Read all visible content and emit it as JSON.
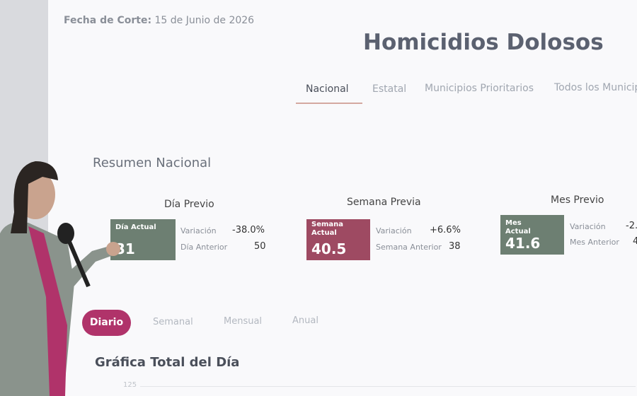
{
  "header": {
    "label": "Fecha de Corte:",
    "date": "15 de Junio de 2026",
    "title": "Homicidios Dolosos"
  },
  "tabs": [
    "Nacional",
    "Estatal",
    "Municipios Prioritarios",
    "Todos los Municipios"
  ],
  "summary": {
    "title": "Resumen Nacional",
    "cards": [
      {
        "heading": "Día Previo",
        "current_label": "Día Actual",
        "current": 31,
        "variation_label": "Variación",
        "variation": "-38.0%",
        "previous_label": "Día Anterior",
        "previous": 50
      },
      {
        "heading": "Semana Previa",
        "current_label": "Semana Actual",
        "current": 40.5,
        "variation_label": "Variación",
        "variation": "+6.6%",
        "previous_label": "Semana Anterior",
        "previous": 38
      },
      {
        "heading": "Mes Previo",
        "current_label": "Mes Actual",
        "current": 41.6,
        "variation_label": "Variación",
        "variation": "-2.",
        "previous_label": "Mes Anterior",
        "previous": "4"
      }
    ]
  },
  "periods": [
    "Diario",
    "Semanal",
    "Mensual",
    "Anual"
  ],
  "chart": {
    "title": "Gráfica Total del Día",
    "axis_label": "125"
  }
}
